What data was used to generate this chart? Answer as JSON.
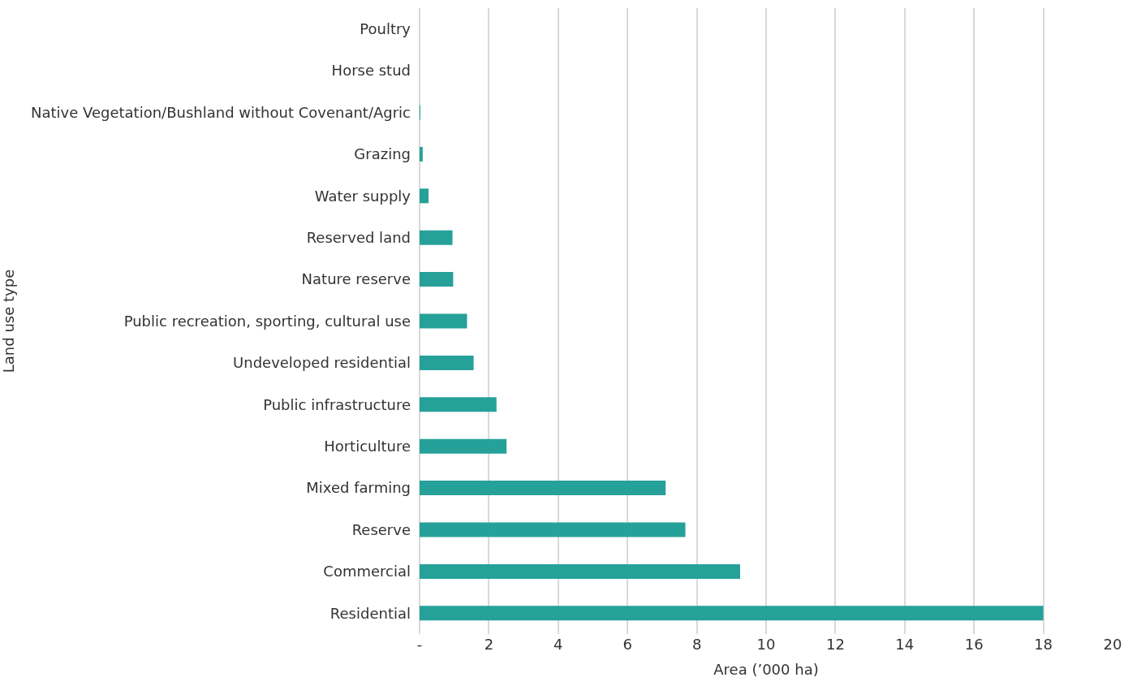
{
  "chart_data": {
    "type": "bar",
    "orientation": "horizontal",
    "xlabel": "Area (’000 ha)",
    "ylabel": "Land use type",
    "categories": [
      "Poultry",
      "Horse stud",
      "Native Vegetation/Bushland without Covenant/Agric",
      "Grazing",
      "Water supply",
      "Reserved land",
      "Nature reserve",
      "Public recreation, sporting, cultural use",
      "Undeveloped residential",
      "Public infrastructure",
      "Horticulture",
      "Mixed farming",
      "Reserve",
      "Commercial",
      "Residential"
    ],
    "values": [
      0,
      0,
      0.02,
      0.09,
      0.26,
      0.95,
      0.97,
      1.37,
      1.56,
      2.22,
      2.51,
      7.1,
      7.67,
      9.25,
      18.0
    ],
    "color": "#26a19a",
    "xlim": [
      0,
      20
    ],
    "xticks": [
      {
        "value": 0,
        "label": "-"
      },
      2,
      4,
      6,
      8,
      10,
      12,
      14,
      16,
      18,
      20
    ],
    "grid": "x"
  }
}
